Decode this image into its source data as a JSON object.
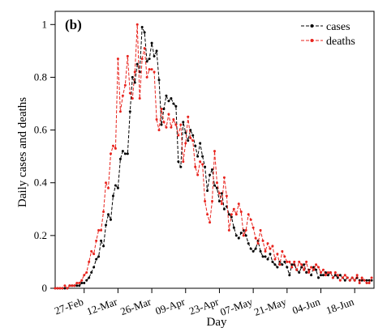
{
  "chart_data": {
    "type": "line",
    "panel_label": "(b)",
    "title": "",
    "xlabel": "Day",
    "ylabel": "Daily cases and deaths",
    "x_start_date": "2020-02-15",
    "x_end_date": "2020-06-26",
    "ylim": [
      0,
      1.05
    ],
    "y_ticks": [
      0,
      0.2,
      0.4,
      0.6,
      0.8,
      1
    ],
    "x_ticks": [
      {
        "date": "2020-02-27",
        "label": "27-Feb"
      },
      {
        "date": "2020-03-12",
        "label": "12-Mar"
      },
      {
        "date": "2020-03-26",
        "label": "26-Mar"
      },
      {
        "date": "2020-04-09",
        "label": "09-Apr"
      },
      {
        "date": "2020-04-23",
        "label": "23-Apr"
      },
      {
        "date": "2020-05-07",
        "label": "07-May"
      },
      {
        "date": "2020-05-21",
        "label": "21-May"
      },
      {
        "date": "2020-06-04",
        "label": "04-Jun"
      },
      {
        "date": "2020-06-18",
        "label": "18-Jun"
      }
    ],
    "grid": false,
    "legend_position": "top-right",
    "series": [
      {
        "name": "cases",
        "color": "#000000",
        "values": [
          0,
          0,
          0,
          0,
          0,
          0,
          0.01,
          0.01,
          0.01,
          0.01,
          0.01,
          0.02,
          0.02,
          0.03,
          0.04,
          0.06,
          0.08,
          0.11,
          0.12,
          0.18,
          0.16,
          0.24,
          0.28,
          0.26,
          0.35,
          0.39,
          0.38,
          0.49,
          0.52,
          0.51,
          0.51,
          0.67,
          0.8,
          0.78,
          0.85,
          0.82,
          0.99,
          0.97,
          0.86,
          0.87,
          0.93,
          0.88,
          0.9,
          0.79,
          0.62,
          0.68,
          0.73,
          0.71,
          0.72,
          0.7,
          0.69,
          0.48,
          0.46,
          0.63,
          0.59,
          0.56,
          0.6,
          0.58,
          0.54,
          0.5,
          0.55,
          0.5,
          0.46,
          0.37,
          0.43,
          0.45,
          0.39,
          0.38,
          0.33,
          0.36,
          0.3,
          0.31,
          0.28,
          0.27,
          0.23,
          0.2,
          0.19,
          0.21,
          0.22,
          0.2,
          0.17,
          0.15,
          0.14,
          0.15,
          0.18,
          0.14,
          0.12,
          0.12,
          0.11,
          0.13,
          0.1,
          0.09,
          0.08,
          0.1,
          0.09,
          0.1,
          0.08,
          0.05,
          0.09,
          0.09,
          0.07,
          0.06,
          0.08,
          0.09,
          0.06,
          0.07,
          0.05,
          0.08,
          0.07,
          0.04,
          0.05,
          0.05,
          0.06,
          0.05,
          0.06,
          0.04,
          0.05,
          0.04,
          0.05,
          0.04,
          0.03,
          0.04,
          0.03,
          0.04,
          0.03,
          0.04,
          0.03,
          0.03,
          0.03,
          0.03,
          0.03,
          0.03
        ]
      },
      {
        "name": "deaths",
        "color": "#e8231d",
        "values": [
          0,
          0,
          0,
          0,
          0.01,
          0,
          0.01,
          0.01,
          0.01,
          0.02,
          0.02,
          0.03,
          0.05,
          0.06,
          0.1,
          0.14,
          0.13,
          0.18,
          0.22,
          0.22,
          0.29,
          0.4,
          0.38,
          0.51,
          0.54,
          0.53,
          0.87,
          0.67,
          0.73,
          0.77,
          0.88,
          0.74,
          0.72,
          0.82,
          1.0,
          0.72,
          0.87,
          0.91,
          0.8,
          0.83,
          0.83,
          0.82,
          0.64,
          0.6,
          0.68,
          0.63,
          0.61,
          0.66,
          0.61,
          0.64,
          0.62,
          0.58,
          0.62,
          0.48,
          0.55,
          0.65,
          0.57,
          0.56,
          0.46,
          0.43,
          0.48,
          0.47,
          0.33,
          0.28,
          0.25,
          0.33,
          0.52,
          0.4,
          0.36,
          0.32,
          0.42,
          0.35,
          0.22,
          0.28,
          0.3,
          0.28,
          0.32,
          0.29,
          0.2,
          0.22,
          0.28,
          0.26,
          0.23,
          0.19,
          0.17,
          0.22,
          0.18,
          0.14,
          0.17,
          0.15,
          0.16,
          0.11,
          0.13,
          0.09,
          0.14,
          0.12,
          0.1,
          0.1,
          0.08,
          0.1,
          0.07,
          0.1,
          0.09,
          0.07,
          0.1,
          0.06,
          0.08,
          0.07,
          0.09,
          0.08,
          0.06,
          0.07,
          0.05,
          0.06,
          0.06,
          0.04,
          0.06,
          0.05,
          0.03,
          0.04,
          0.05,
          0.04,
          0.03,
          0.04,
          0.03,
          0.05,
          0.02,
          0.04,
          0.03,
          0.02,
          0.02,
          0.04
        ]
      }
    ]
  }
}
